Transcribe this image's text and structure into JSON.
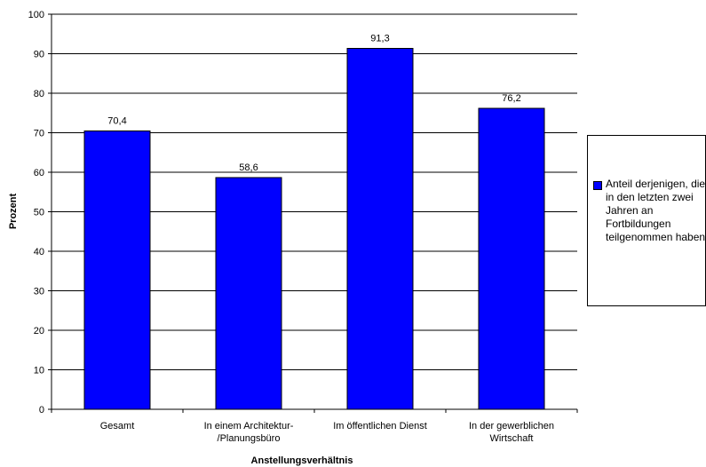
{
  "chart_data": {
    "type": "bar",
    "categories": [
      [
        "Gesamt"
      ],
      [
        "In einem Architektur-",
        "/Planungsbüro"
      ],
      [
        "Im öffentlichen Dienst"
      ],
      [
        "In der gewerblichen",
        "Wirtschaft"
      ]
    ],
    "series": [
      {
        "name": "Anteil derjenigen, die in den letzten zwei Jahren an Fortbildungen teilgenommen haben",
        "values": [
          70.4,
          58.6,
          91.3,
          76.2
        ],
        "data_labels": [
          "70,4",
          "58,6",
          "91,3",
          "76,2"
        ],
        "color": "#0000FF"
      }
    ],
    "xlabel": "Anstellungsverhältnis",
    "ylabel": "Prozent",
    "ylim": [
      0,
      100
    ],
    "yticks": [
      0,
      10,
      20,
      30,
      40,
      50,
      60,
      70,
      80,
      90,
      100
    ],
    "grid": true,
    "legend_position": "right"
  },
  "legend": {
    "label": "Anteil derjenigen, die in den letzten zwei Jahren an Fortbildungen teilgenommen haben"
  }
}
